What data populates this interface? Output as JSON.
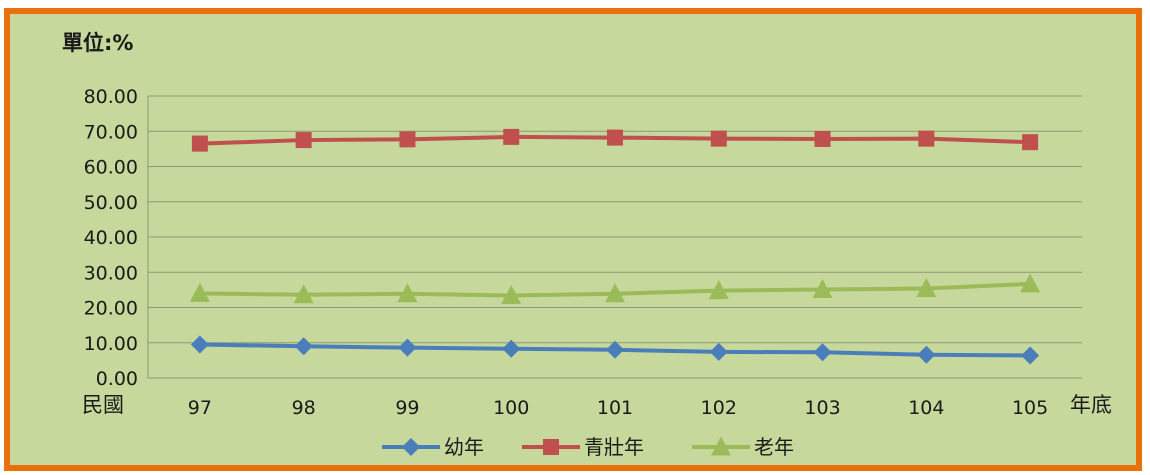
{
  "chart_data": {
    "type": "line",
    "unit_label": "單位:%",
    "x_prefix_label": "民國",
    "x_suffix_label": "年底",
    "categories": [
      "97",
      "98",
      "99",
      "100",
      "101",
      "102",
      "103",
      "104",
      "105"
    ],
    "ylim": [
      0,
      80
    ],
    "yticks": [
      "0.00",
      "10.00",
      "20.00",
      "30.00",
      "40.00",
      "50.00",
      "60.00",
      "70.00",
      "80.00"
    ],
    "grid": true,
    "legend_position": "bottom",
    "series": [
      {
        "name": "幼年",
        "color": "#4a7ebb",
        "marker": "diamond",
        "values": [
          9.5,
          9.0,
          8.6,
          8.3,
          8.0,
          7.4,
          7.3,
          6.6,
          6.4
        ]
      },
      {
        "name": "青壯年",
        "color": "#c0504d",
        "marker": "square",
        "values": [
          66.5,
          67.5,
          67.7,
          68.4,
          68.2,
          67.9,
          67.8,
          67.9,
          66.9
        ]
      },
      {
        "name": "老年",
        "color": "#9bbb59",
        "marker": "triangle",
        "values": [
          24.0,
          23.6,
          23.9,
          23.4,
          23.9,
          24.8,
          25.1,
          25.4,
          26.7
        ]
      }
    ]
  },
  "colors": {
    "frame_border": "#e9700c",
    "plot_background": "#c6d89b",
    "gridline": "#8c9a78",
    "axis_line": "#8c9a78"
  }
}
